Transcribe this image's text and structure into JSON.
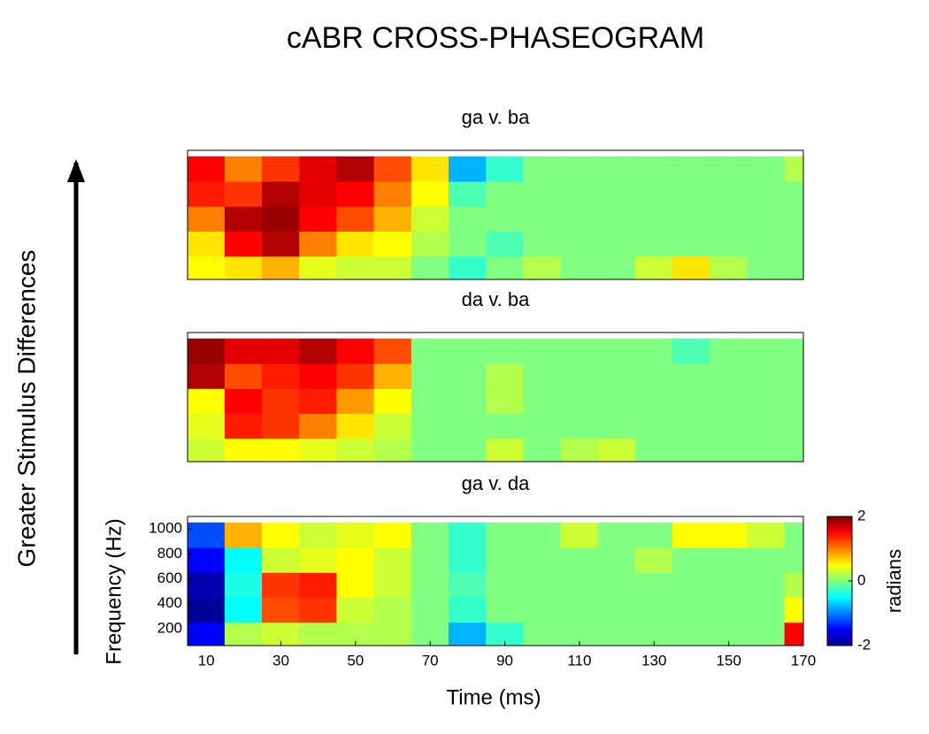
{
  "title": "cABR CROSS-PHASEOGRAM",
  "side_label": "Greater  Stimulus Differences",
  "chart_data": [
    {
      "type": "heatmap",
      "title": "ga v. ba",
      "colormap": "jet",
      "x": [
        10,
        20,
        30,
        40,
        50,
        60,
        70,
        80,
        90,
        100,
        110,
        120,
        130,
        140,
        150,
        160,
        170
      ],
      "y": [
        150,
        350,
        550,
        750,
        950
      ],
      "xlim": [
        5,
        170
      ],
      "ylim": [
        65,
        1100
      ],
      "zlim": [
        -2,
        2
      ],
      "z": [
        [
          0.5,
          0.6,
          0.8,
          0.4,
          0.3,
          0.3,
          0,
          -0.3,
          0,
          0.2,
          0,
          0,
          0.3,
          0.6,
          0.2,
          0,
          0
        ],
        [
          0.6,
          1.5,
          1.8,
          1.0,
          0.6,
          0.5,
          0.2,
          0,
          -0.2,
          0,
          0,
          0,
          0,
          0,
          0,
          0,
          0
        ],
        [
          1.0,
          1.8,
          1.9,
          1.5,
          1.2,
          0.8,
          0.3,
          0,
          0,
          0,
          0,
          0,
          0,
          0,
          0,
          0,
          0
        ],
        [
          1.4,
          1.3,
          1.8,
          1.6,
          1.5,
          1.0,
          0.5,
          -0.2,
          0,
          0,
          0,
          0,
          0,
          0,
          0,
          0,
          0
        ],
        [
          1.5,
          1.0,
          1.3,
          1.6,
          1.8,
          1.2,
          0.6,
          -0.8,
          -0.3,
          0,
          0,
          0,
          0,
          0,
          0,
          0,
          0.2
        ]
      ]
    },
    {
      "type": "heatmap",
      "title": "da v. ba",
      "colormap": "jet",
      "x": [
        10,
        20,
        30,
        40,
        50,
        60,
        70,
        80,
        90,
        100,
        110,
        120,
        130,
        140,
        150,
        160,
        170
      ],
      "y": [
        150,
        350,
        550,
        750,
        950
      ],
      "xlim": [
        5,
        170
      ],
      "ylim": [
        65,
        1100
      ],
      "zlim": [
        -2,
        2
      ],
      "z": [
        [
          0.3,
          0.5,
          0.5,
          0.4,
          0.3,
          0.2,
          0,
          0,
          0.3,
          0,
          0.2,
          0.3,
          0,
          0,
          0,
          0,
          0
        ],
        [
          0.4,
          1.4,
          1.3,
          1.0,
          0.6,
          0.3,
          0,
          0,
          0,
          0,
          0,
          0,
          0,
          0,
          0,
          0,
          0
        ],
        [
          0.5,
          1.5,
          1.3,
          1.4,
          0.9,
          0.5,
          0,
          0,
          0.2,
          0,
          0,
          0,
          0,
          0,
          0,
          0,
          0
        ],
        [
          1.8,
          1.2,
          1.4,
          1.5,
          1.3,
          0.8,
          0,
          0,
          0.2,
          0,
          0,
          0,
          0,
          0,
          0,
          0,
          0
        ],
        [
          1.9,
          1.6,
          1.6,
          1.8,
          1.5,
          1.2,
          0,
          0,
          0,
          0,
          0,
          0,
          0,
          -0.2,
          0,
          0,
          0
        ]
      ]
    },
    {
      "type": "heatmap",
      "title": "ga v. da",
      "colormap": "jet",
      "x": [
        10,
        20,
        30,
        40,
        50,
        60,
        70,
        80,
        90,
        100,
        110,
        120,
        130,
        140,
        150,
        160,
        170
      ],
      "y": [
        150,
        350,
        550,
        750,
        950
      ],
      "xlim": [
        5,
        170
      ],
      "ylim": [
        65,
        1100
      ],
      "zlim": [
        -2,
        2
      ],
      "xticks": [
        10,
        30,
        50,
        70,
        90,
        110,
        130,
        150,
        170
      ],
      "yticks": [
        200,
        400,
        600,
        800,
        1000
      ],
      "xlabel": "Time (ms)",
      "ylabel": "Frequency (Hz)",
      "zticks": [
        -2,
        0,
        2
      ],
      "zlabel": "radians",
      "z": [
        [
          -1.5,
          0.2,
          0.3,
          0.2,
          0.2,
          0.2,
          0,
          -0.8,
          -0.3,
          0,
          0,
          0,
          0,
          0,
          0,
          0,
          1.5
        ],
        [
          -1.9,
          -0.5,
          1.2,
          1.3,
          0.3,
          0.2,
          0,
          -0.3,
          0,
          0,
          0,
          0,
          0,
          0,
          0,
          0,
          0.5
        ],
        [
          -1.8,
          -0.4,
          1.3,
          1.4,
          0.5,
          0.3,
          0,
          -0.2,
          0,
          0,
          0,
          0,
          0,
          0,
          0,
          0,
          0.2
        ],
        [
          -1.5,
          -0.5,
          0.3,
          0.4,
          0.5,
          0.3,
          0,
          -0.3,
          0,
          0,
          0,
          0,
          0.2,
          0,
          0,
          0,
          0
        ],
        [
          -1.2,
          0.8,
          0.5,
          0.3,
          0.4,
          0.5,
          0,
          -0.3,
          0,
          0,
          0.3,
          0,
          0,
          0.5,
          0.5,
          0.3,
          0
        ]
      ]
    }
  ]
}
